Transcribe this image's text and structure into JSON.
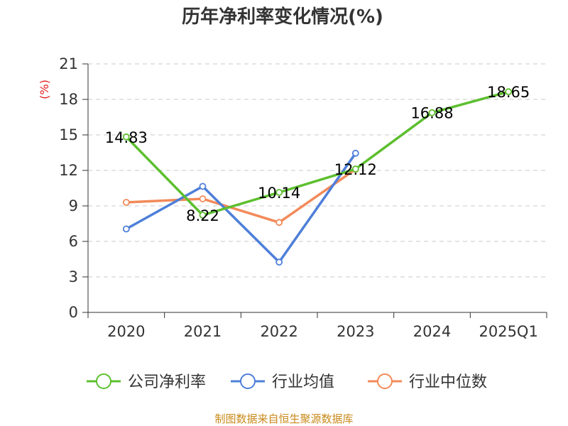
{
  "chart_data": {
    "type": "line",
    "title": "历年净利率变化情况(%)",
    "ylabel": "(%)",
    "categories": [
      "2020",
      "2021",
      "2022",
      "2023",
      "2024",
      "2025Q1"
    ],
    "yticks": [
      0,
      3,
      6,
      9,
      12,
      15,
      18,
      21
    ],
    "ylim": [
      0,
      21
    ],
    "grid": true,
    "legend_position": "bottom",
    "series": [
      {
        "name": "公司净利率",
        "color": "#5cbf2e",
        "values": [
          14.83,
          8.22,
          10.14,
          12.12,
          16.88,
          18.65
        ],
        "labels": [
          "14.83",
          "8.22",
          "10.14",
          "12.12",
          "16.88",
          "18.65"
        ]
      },
      {
        "name": "行业均值",
        "color": "#4e7fd9",
        "values": [
          7.05,
          10.65,
          4.25,
          13.45,
          null,
          null
        ]
      },
      {
        "name": "行业中位数",
        "color": "#f28a5a",
        "values": [
          9.3,
          9.6,
          7.6,
          12.1,
          null,
          null
        ]
      }
    ]
  },
  "source": "制图数据来自恒生聚源数据库"
}
